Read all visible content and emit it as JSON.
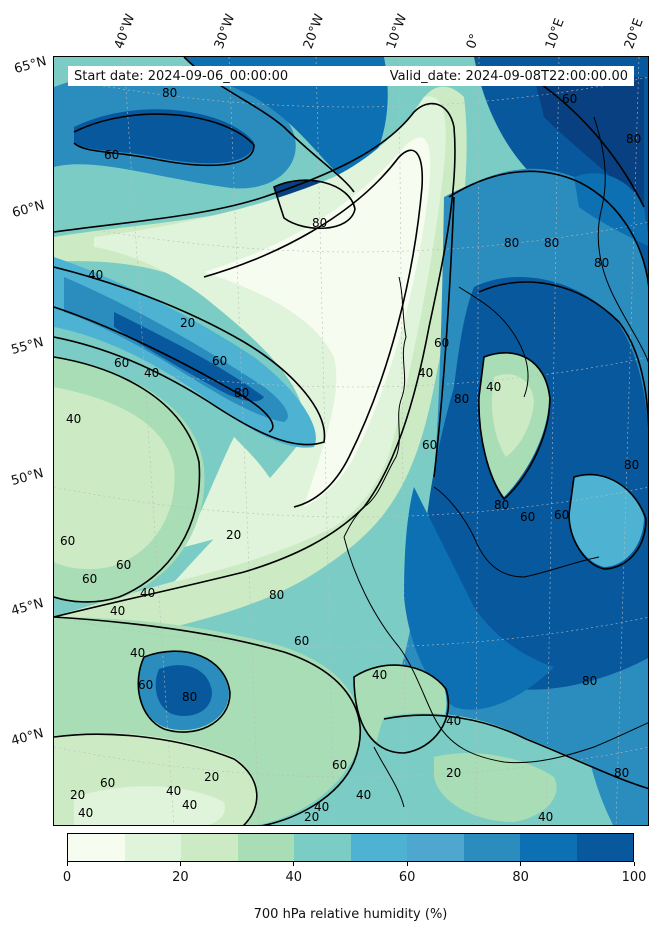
{
  "map": {
    "start_label": "Start date: 2024-09-06_00:00:00",
    "valid_label": "Valid_date: 2024-09-08T22:00:00.00",
    "longitude_labels": [
      "40°W",
      "30°W",
      "20°W",
      "10°W",
      "0°",
      "10°E",
      "20°E"
    ],
    "latitude_labels": [
      "65°N",
      "60°N",
      "55°N",
      "50°N",
      "45°N",
      "40°N"
    ],
    "contour_labels": [
      "20",
      "40",
      "60",
      "80"
    ],
    "colors": {
      "land_outline": "#000000",
      "contour": "#000000",
      "graticule": "#bbbbbb"
    }
  },
  "colorbar": {
    "title": "700 hPa relative humidity (%)",
    "tick_labels": [
      "0",
      "20",
      "40",
      "60",
      "80",
      "100"
    ],
    "tick_values": [
      0,
      20,
      40,
      60,
      80,
      100
    ],
    "range": [
      0,
      100
    ],
    "level_colors": [
      "#f7fcf0",
      "#e0f3db",
      "#ccebc5",
      "#a8ddb5",
      "#7bccc4",
      "#4eb3d3",
      "#4fa6cf",
      "#2b8cbe",
      "#0c70b2",
      "#08589e",
      "#084081"
    ]
  }
}
